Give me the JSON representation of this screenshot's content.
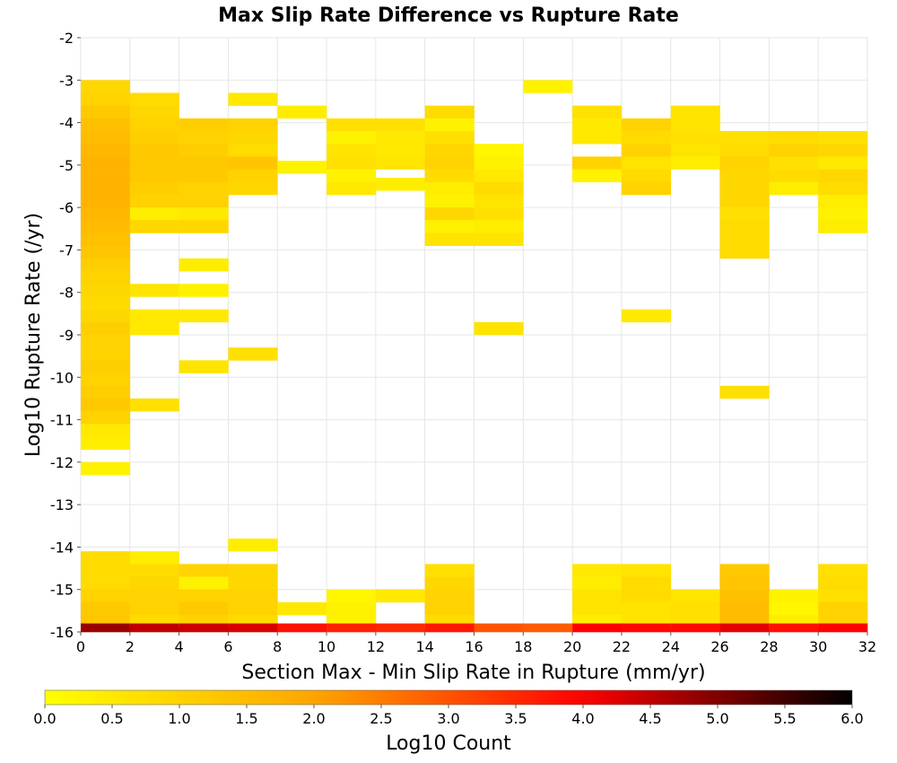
{
  "chart_data": {
    "type": "heatmap",
    "title": "Max Slip Rate Difference vs Rupture Rate",
    "xlabel": "Section Max - Min Slip Rate in Rupture (mm/yr)",
    "ylabel": "Log10 Rupture Rate (/yr)",
    "xlim": [
      0,
      32
    ],
    "ylim": [
      -16,
      -2
    ],
    "x_ticks": [
      "0",
      "2",
      "4",
      "6",
      "8",
      "10",
      "12",
      "14",
      "16",
      "18",
      "20",
      "22",
      "24",
      "26",
      "28",
      "30",
      "32"
    ],
    "y_ticks": [
      "-2",
      "-3",
      "-4",
      "-5",
      "-6",
      "-7",
      "-8",
      "-9",
      "-10",
      "-11",
      "-12",
      "-13",
      "-14",
      "-15",
      "-16"
    ],
    "x_bin_width": 2,
    "y_bin_height": 0.3,
    "colorbar": {
      "label": "Log10 Count",
      "range": [
        0,
        6
      ],
      "ticks": [
        "0.0",
        "0.5",
        "1.0",
        "1.5",
        "2.0",
        "2.5",
        "3.0",
        "3.5",
        "4.0",
        "4.5",
        "5.0",
        "5.5",
        "6.0"
      ],
      "colormap": [
        "#ffff00",
        "#ffa500",
        "#ff0000",
        "#000000"
      ]
    },
    "grid": true,
    "columns": [
      {
        "x": 0,
        "cells": [
          [
            -3.15,
            0.9
          ],
          [
            -3.45,
            1.0
          ],
          [
            -3.75,
            1.2
          ],
          [
            -4.05,
            1.4
          ],
          [
            -4.35,
            1.5
          ],
          [
            -4.65,
            1.6
          ],
          [
            -4.95,
            1.7
          ],
          [
            -5.25,
            1.7
          ],
          [
            -5.55,
            1.7
          ],
          [
            -5.85,
            1.7
          ],
          [
            -6.15,
            1.6
          ],
          [
            -6.45,
            1.5
          ],
          [
            -6.75,
            1.4
          ],
          [
            -7.05,
            1.3
          ],
          [
            -7.35,
            1.1
          ],
          [
            -7.65,
            1.0
          ],
          [
            -7.95,
            0.9
          ],
          [
            -8.25,
            0.8
          ],
          [
            -8.55,
            0.9
          ],
          [
            -8.85,
            1.1
          ],
          [
            -9.15,
            1.0
          ],
          [
            -9.45,
            1.0
          ],
          [
            -9.75,
            1.1
          ],
          [
            -10.05,
            1.0
          ],
          [
            -10.35,
            1.1
          ],
          [
            -10.65,
            1.2
          ],
          [
            -10.95,
            1.0
          ],
          [
            -11.25,
            0.5
          ],
          [
            -11.55,
            0.4
          ],
          [
            -12.15,
            0.3
          ],
          [
            -14.25,
            0.8
          ],
          [
            -14.55,
            0.8
          ],
          [
            -14.85,
            0.8
          ],
          [
            -15.15,
            1.0
          ],
          [
            -15.45,
            1.2
          ],
          [
            -15.75,
            1.3
          ],
          [
            -15.95,
            4.8
          ]
        ]
      },
      {
        "x": 2,
        "cells": [
          [
            -3.45,
            0.8
          ],
          [
            -3.75,
            0.9
          ],
          [
            -4.05,
            1.0
          ],
          [
            -4.35,
            1.1
          ],
          [
            -4.65,
            1.2
          ],
          [
            -4.95,
            1.2
          ],
          [
            -5.25,
            1.2
          ],
          [
            -5.55,
            1.1
          ],
          [
            -5.85,
            1.0
          ],
          [
            -6.15,
            0.4
          ],
          [
            -6.45,
            0.9
          ],
          [
            -7.95,
            0.6
          ],
          [
            -8.55,
            0.5
          ],
          [
            -8.85,
            0.5
          ],
          [
            -10.65,
            0.7
          ],
          [
            -14.25,
            0.4
          ],
          [
            -14.55,
            0.8
          ],
          [
            -14.85,
            0.9
          ],
          [
            -15.15,
            1.0
          ],
          [
            -15.45,
            1.0
          ],
          [
            -15.75,
            0.8
          ],
          [
            -15.95,
            4.5
          ]
        ]
      },
      {
        "x": 4,
        "cells": [
          [
            -4.05,
            1.1
          ],
          [
            -4.35,
            1.0
          ],
          [
            -4.65,
            1.1
          ],
          [
            -4.95,
            1.2
          ],
          [
            -5.25,
            1.2
          ],
          [
            -5.55,
            1.0
          ],
          [
            -5.85,
            1.0
          ],
          [
            -6.15,
            0.5
          ],
          [
            -6.45,
            0.9
          ],
          [
            -7.35,
            0.4
          ],
          [
            -7.95,
            0.3
          ],
          [
            -8.55,
            0.5
          ],
          [
            -9.75,
            0.6
          ],
          [
            -14.55,
            1.0
          ],
          [
            -14.85,
            0.3
          ],
          [
            -15.15,
            1.0
          ],
          [
            -15.45,
            1.2
          ],
          [
            -15.75,
            1.0
          ],
          [
            -15.95,
            4.4
          ]
        ]
      },
      {
        "x": 6,
        "cells": [
          [
            -3.45,
            0.5
          ],
          [
            -4.05,
            1.0
          ],
          [
            -4.35,
            0.9
          ],
          [
            -4.65,
            0.8
          ],
          [
            -4.95,
            1.3
          ],
          [
            -5.25,
            1.0
          ],
          [
            -5.55,
            0.9
          ],
          [
            -9.45,
            0.7
          ],
          [
            -13.95,
            0.4
          ],
          [
            -14.55,
            0.9
          ],
          [
            -14.85,
            0.9
          ],
          [
            -15.15,
            1.0
          ],
          [
            -15.45,
            1.0
          ],
          [
            -15.75,
            0.8
          ],
          [
            -15.95,
            4.3
          ]
        ]
      },
      {
        "x": 8,
        "cells": [
          [
            -3.75,
            0.4
          ],
          [
            -5.05,
            0.3
          ],
          [
            -15.45,
            0.5
          ],
          [
            -15.95,
            3.8
          ]
        ]
      },
      {
        "x": 10,
        "cells": [
          [
            -4.05,
            0.7
          ],
          [
            -4.35,
            0.3
          ],
          [
            -4.65,
            0.6
          ],
          [
            -4.95,
            0.7
          ],
          [
            -5.25,
            0.3
          ],
          [
            -5.55,
            0.5
          ],
          [
            -15.15,
            0.2
          ],
          [
            -15.45,
            0.3
          ],
          [
            -15.75,
            0.3
          ],
          [
            -15.95,
            3.6
          ]
        ]
      },
      {
        "x": 12,
        "cells": [
          [
            -4.05,
            0.7
          ],
          [
            -4.35,
            0.5
          ],
          [
            -4.65,
            0.5
          ],
          [
            -4.95,
            0.6
          ],
          [
            -5.45,
            0.4
          ],
          [
            -15.15,
            0.5
          ],
          [
            -15.95,
            3.5
          ]
        ]
      },
      {
        "x": 14,
        "cells": [
          [
            -3.75,
            0.8
          ],
          [
            -4.05,
            0.3
          ],
          [
            -4.35,
            0.7
          ],
          [
            -4.65,
            0.9
          ],
          [
            -4.95,
            1.0
          ],
          [
            -5.25,
            0.8
          ],
          [
            -5.55,
            0.4
          ],
          [
            -5.85,
            0.3
          ],
          [
            -6.15,
            0.9
          ],
          [
            -6.45,
            0.3
          ],
          [
            -6.75,
            0.6
          ],
          [
            -14.55,
            0.7
          ],
          [
            -14.85,
            0.9
          ],
          [
            -15.15,
            1.0
          ],
          [
            -15.45,
            1.0
          ],
          [
            -15.75,
            0.8
          ],
          [
            -15.95,
            3.7
          ]
        ]
      },
      {
        "x": 16,
        "cells": [
          [
            -4.65,
            0.2
          ],
          [
            -4.95,
            0.3
          ],
          [
            -5.25,
            0.5
          ],
          [
            -5.55,
            0.8
          ],
          [
            -5.85,
            0.6
          ],
          [
            -6.15,
            0.7
          ],
          [
            -6.45,
            0.4
          ],
          [
            -6.75,
            0.6
          ],
          [
            -8.85,
            0.6
          ],
          [
            -15.95,
            3.0
          ]
        ]
      },
      {
        "x": 18,
        "cells": [
          [
            -3.15,
            0.3
          ],
          [
            -15.95,
            2.9
          ]
        ]
      },
      {
        "x": 20,
        "cells": [
          [
            -3.75,
            0.7
          ],
          [
            -4.05,
            0.5
          ],
          [
            -4.35,
            0.5
          ],
          [
            -4.95,
            1.0
          ],
          [
            -5.25,
            0.3
          ],
          [
            -14.55,
            0.5
          ],
          [
            -14.85,
            0.4
          ],
          [
            -15.15,
            0.6
          ],
          [
            -15.45,
            0.6
          ],
          [
            -15.75,
            0.4
          ],
          [
            -15.95,
            4.0
          ]
        ]
      },
      {
        "x": 22,
        "cells": [
          [
            -4.05,
            1.0
          ],
          [
            -4.35,
            0.8
          ],
          [
            -4.65,
            1.0
          ],
          [
            -4.95,
            0.6
          ],
          [
            -5.25,
            0.8
          ],
          [
            -5.55,
            1.0
          ],
          [
            -8.55,
            0.5
          ],
          [
            -14.55,
            0.6
          ],
          [
            -14.85,
            0.8
          ],
          [
            -15.15,
            0.8
          ],
          [
            -15.45,
            0.6
          ],
          [
            -15.75,
            0.6
          ],
          [
            -15.95,
            3.9
          ]
        ]
      },
      {
        "x": 24,
        "cells": [
          [
            -3.75,
            0.6
          ],
          [
            -4.05,
            0.6
          ],
          [
            -4.35,
            0.7
          ],
          [
            -4.65,
            0.6
          ],
          [
            -4.95,
            0.4
          ],
          [
            -15.15,
            0.6
          ],
          [
            -15.45,
            0.7
          ],
          [
            -15.75,
            0.7
          ],
          [
            -15.95,
            3.9
          ]
        ]
      },
      {
        "x": 26,
        "cells": [
          [
            -4.35,
            0.7
          ],
          [
            -4.65,
            0.8
          ],
          [
            -4.95,
            1.0
          ],
          [
            -5.25,
            0.9
          ],
          [
            -5.55,
            0.9
          ],
          [
            -5.85,
            0.9
          ],
          [
            -6.15,
            0.7
          ],
          [
            -6.45,
            0.8
          ],
          [
            -6.75,
            0.8
          ],
          [
            -7.05,
            0.8
          ],
          [
            -10.35,
            0.7
          ],
          [
            -14.55,
            1.2
          ],
          [
            -14.85,
            1.3
          ],
          [
            -15.15,
            1.4
          ],
          [
            -15.45,
            1.5
          ],
          [
            -15.75,
            1.5
          ],
          [
            -15.95,
            4.2
          ]
        ]
      },
      {
        "x": 28,
        "cells": [
          [
            -4.35,
            0.8
          ],
          [
            -4.65,
            1.0
          ],
          [
            -4.95,
            0.7
          ],
          [
            -5.25,
            0.8
          ],
          [
            -5.55,
            0.4
          ],
          [
            -15.15,
            0.3
          ],
          [
            -15.45,
            0.2
          ],
          [
            -15.75,
            0.4
          ],
          [
            -15.95,
            3.8
          ]
        ]
      },
      {
        "x": 30,
        "cells": [
          [
            -4.35,
            0.7
          ],
          [
            -4.65,
            0.9
          ],
          [
            -4.95,
            0.5
          ],
          [
            -5.25,
            0.9
          ],
          [
            -5.55,
            0.8
          ],
          [
            -5.85,
            0.4
          ],
          [
            -6.15,
            0.3
          ],
          [
            -6.45,
            0.4
          ],
          [
            -14.55,
            0.7
          ],
          [
            -14.85,
            0.8
          ],
          [
            -15.15,
            0.7
          ],
          [
            -15.45,
            1.0
          ],
          [
            -15.75,
            1.0
          ],
          [
            -15.95,
            4.0
          ]
        ]
      }
    ]
  }
}
